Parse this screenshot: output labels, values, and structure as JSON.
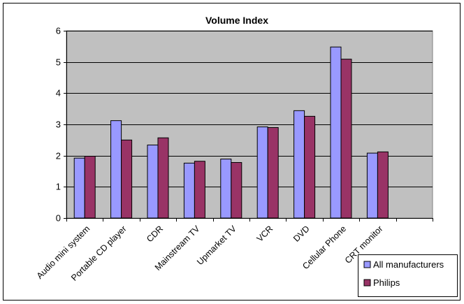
{
  "chart_data": {
    "type": "bar",
    "title": "Volume Index",
    "xlabel": "",
    "ylabel": "",
    "ylim": [
      0,
      6
    ],
    "yticks": [
      0,
      1,
      2,
      3,
      4,
      5,
      6
    ],
    "grid": true,
    "legend_position": "bottom-right",
    "plot_background": "#c0c0c0",
    "categories": [
      "Audio mini system",
      "Portable CD player",
      "CDR",
      "Mainstream TV",
      "Upmarket TV",
      "VCR",
      "DVD",
      "Cellular Phone",
      "CRT monitor"
    ],
    "empty_trailing_slots": 1,
    "series": [
      {
        "name": "All manufacturers",
        "color": "#9999ff",
        "values": [
          1.92,
          3.12,
          2.34,
          1.76,
          1.89,
          2.92,
          3.44,
          5.48,
          2.08
        ]
      },
      {
        "name": "Philips",
        "color": "#993366",
        "values": [
          1.98,
          2.5,
          2.57,
          1.82,
          1.78,
          2.9,
          3.26,
          5.09,
          2.12
        ]
      }
    ]
  }
}
